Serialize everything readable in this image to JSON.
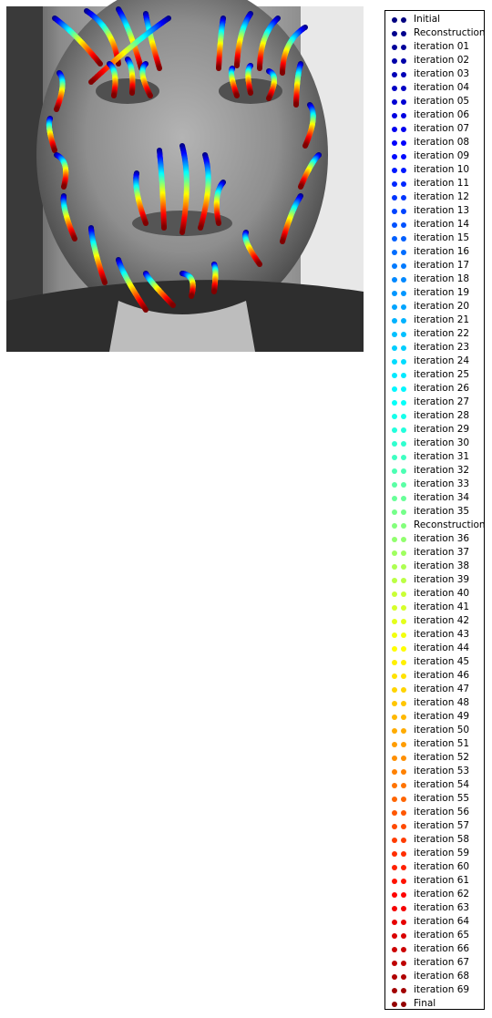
{
  "chart_data": {
    "type": "scatter",
    "title": "",
    "xlabel": "",
    "ylabel": "",
    "axes_visible": false,
    "background": "grayscale face photograph",
    "colormap": "jet",
    "legend_position": "outside right",
    "legend": [
      "Initial",
      "Reconstruction",
      "iteration 01",
      "iteration 02",
      "iteration 03",
      "iteration 04",
      "iteration 05",
      "iteration 06",
      "iteration 07",
      "iteration 08",
      "iteration 09",
      "iteration 10",
      "iteration 11",
      "iteration 12",
      "iteration 13",
      "iteration 14",
      "iteration 15",
      "iteration 16",
      "iteration 17",
      "iteration 18",
      "iteration 19",
      "iteration 20",
      "iteration 21",
      "iteration 22",
      "iteration 23",
      "iteration 24",
      "iteration 25",
      "iteration 26",
      "iteration 27",
      "iteration 28",
      "iteration 29",
      "iteration 30",
      "iteration 31",
      "iteration 32",
      "iteration 33",
      "iteration 34",
      "iteration 35",
      "Reconstruction",
      "iteration 36",
      "iteration 37",
      "iteration 38",
      "iteration 39",
      "iteration 40",
      "iteration 41",
      "iteration 42",
      "iteration 43",
      "iteration 44",
      "iteration 45",
      "iteration 46",
      "iteration 47",
      "iteration 48",
      "iteration 49",
      "iteration 50",
      "iteration 51",
      "iteration 52",
      "iteration 53",
      "iteration 54",
      "iteration 55",
      "iteration 56",
      "iteration 57",
      "iteration 58",
      "iteration 59",
      "iteration 60",
      "iteration 61",
      "iteration 62",
      "iteration 63",
      "iteration 64",
      "iteration 65",
      "iteration 66",
      "iteration 67",
      "iteration 68",
      "iteration 69",
      "Final"
    ],
    "landmark_groups": [
      {
        "name": "jaw-left",
        "start": [
          [
            65,
            80
          ],
          [
            55,
            130
          ],
          [
            62,
            170
          ],
          [
            70,
            215
          ]
        ],
        "end": [
          [
            62,
            120
          ],
          [
            60,
            165
          ],
          [
            70,
            205
          ],
          [
            82,
            262
          ]
        ]
      },
      {
        "name": "jaw-right",
        "start": [
          [
            330,
            70
          ],
          [
            340,
            115
          ],
          [
            350,
            170
          ],
          [
            330,
            215
          ]
        ],
        "end": [
          [
            325,
            115
          ],
          [
            335,
            160
          ],
          [
            330,
            205
          ],
          [
            310,
            265
          ]
        ]
      },
      {
        "name": "chin",
        "start": [
          [
            100,
            250
          ],
          [
            130,
            285
          ],
          [
            160,
            300
          ],
          [
            200,
            300
          ],
          [
            235,
            290
          ],
          [
            270,
            255
          ]
        ],
        "end": [
          [
            115,
            310
          ],
          [
            160,
            340
          ],
          [
            190,
            335
          ],
          [
            210,
            325
          ],
          [
            235,
            320
          ],
          [
            285,
            290
          ]
        ]
      },
      {
        "name": "brow-left",
        "start": [
          [
            60,
            20
          ],
          [
            95,
            12
          ],
          [
            130,
            10
          ],
          [
            160,
            15
          ],
          [
            185,
            20
          ]
        ],
        "end": [
          [
            110,
            70
          ],
          [
            130,
            70
          ],
          [
            155,
            75
          ],
          [
            175,
            75
          ],
          [
            100,
            90
          ]
        ]
      },
      {
        "name": "brow-right",
        "start": [
          [
            245,
            20
          ],
          [
            275,
            15
          ],
          [
            305,
            20
          ],
          [
            335,
            30
          ]
        ],
        "end": [
          [
            240,
            75
          ],
          [
            260,
            72
          ],
          [
            285,
            75
          ],
          [
            310,
            80
          ]
        ]
      },
      {
        "name": "eye-left",
        "start": [
          [
            120,
            70
          ],
          [
            140,
            65
          ],
          [
            160,
            70
          ]
        ],
        "end": [
          [
            125,
            105
          ],
          [
            145,
            102
          ],
          [
            165,
            105
          ]
        ]
      },
      {
        "name": "eye-right",
        "start": [
          [
            255,
            75
          ],
          [
            275,
            72
          ],
          [
            295,
            78
          ]
        ],
        "end": [
          [
            260,
            105
          ],
          [
            275,
            102
          ],
          [
            295,
            108
          ]
        ]
      },
      {
        "name": "nose-mouth",
        "start": [
          [
            150,
            190
          ],
          [
            175,
            165
          ],
          [
            200,
            160
          ],
          [
            225,
            170
          ],
          [
            245,
            200
          ]
        ],
        "end": [
          [
            160,
            245
          ],
          [
            180,
            250
          ],
          [
            200,
            255
          ],
          [
            220,
            250
          ],
          [
            240,
            245
          ]
        ]
      }
    ]
  }
}
